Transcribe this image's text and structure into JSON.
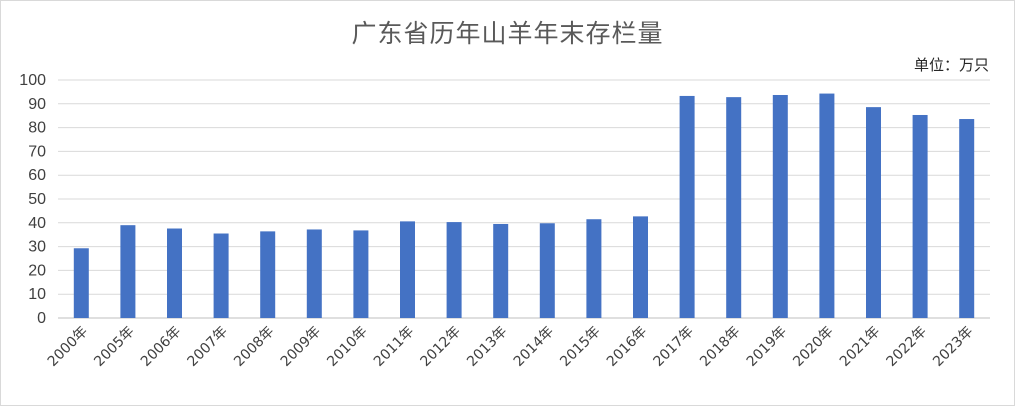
{
  "chart_data": {
    "type": "bar",
    "title": "广东省历年山羊年末存栏量",
    "unit_label": "单位：万只",
    "categories": [
      "2000年",
      "2005年",
      "2006年",
      "2007年",
      "2008年",
      "2009年",
      "2010年",
      "2011年",
      "2012年",
      "2013年",
      "2014年",
      "2015年",
      "2016年",
      "2017年",
      "2018年",
      "2019年",
      "2020年",
      "2021年",
      "2022年",
      "2023年"
    ],
    "values": [
      29.3,
      39.0,
      37.6,
      35.5,
      36.4,
      37.2,
      36.8,
      40.6,
      40.3,
      39.5,
      39.8,
      41.5,
      42.7,
      93.3,
      92.8,
      93.7,
      94.3,
      88.6,
      85.3,
      83.6
    ],
    "ylim": [
      0,
      100
    ],
    "yticks": [
      0,
      10,
      20,
      30,
      40,
      50,
      60,
      70,
      80,
      90,
      100
    ],
    "grid": true,
    "legend": "none",
    "bar_color": "#4472c4"
  }
}
